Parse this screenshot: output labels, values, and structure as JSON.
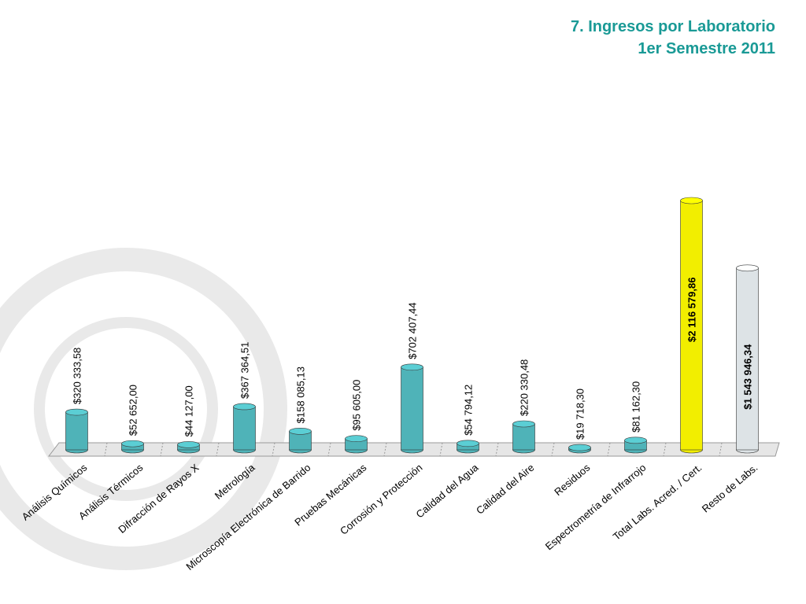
{
  "chart_data": {
    "type": "bar",
    "title": "7. Ingresos por Laboratorio",
    "subtitle": "1er Semestre 2011",
    "categories": [
      "Análisis Químicos",
      "Análisis Térmicos",
      "Difracción de Rayos X",
      "Metrología",
      "Microscopía Electrónica de Barrido",
      "Pruebas Mecánicas",
      "Corrosión y Protección",
      "Calidad del Agua",
      "Calidad del Aire",
      "Residuos",
      "Espectrometría de Infrarrojo",
      "Total Labs. Acred. / Cert.",
      "Resto de Labs."
    ],
    "values": [
      320333.58,
      52652.0,
      44127.0,
      367364.51,
      158085.13,
      95605.0,
      702407.44,
      54794.12,
      220330.48,
      19718.3,
      81162.3,
      2116579.86,
      1543946.34
    ],
    "value_labels": [
      "$320 333,58",
      "$52 652,00",
      "$44 127,00",
      "$367 364,51",
      "$158 085,13",
      "$95 605,00",
      "$702 407,44",
      "$54 794,12",
      "$220 330,48",
      "$19 718,30",
      "$81 162,30",
      "$2 116 579,86",
      "$1 543 946,34"
    ],
    "colors": [
      "#4fb3b8",
      "#4fb3b8",
      "#4fb3b8",
      "#4fb3b8",
      "#4fb3b8",
      "#4fb3b8",
      "#4fb3b8",
      "#4fb3b8",
      "#4fb3b8",
      "#4fb3b8",
      "#4fb3b8",
      "#f2ee00",
      "#dde3e6"
    ]
  }
}
